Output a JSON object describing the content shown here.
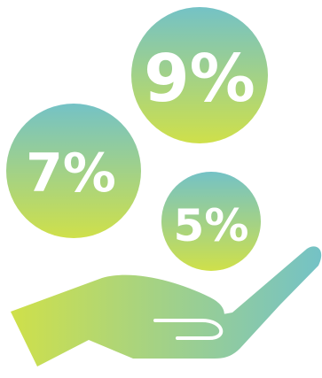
{
  "illustration": {
    "rates": [
      {
        "label": "9%"
      },
      {
        "label": "7%"
      },
      {
        "label": "5%"
      }
    ],
    "colors": {
      "top": "#74c2c6",
      "bottom": "#cfe04a",
      "background": "#ffffff",
      "text": "#ffffff"
    },
    "icons": {
      "hand": "open-hand-icon",
      "coins": "percent-coin-icon"
    }
  }
}
